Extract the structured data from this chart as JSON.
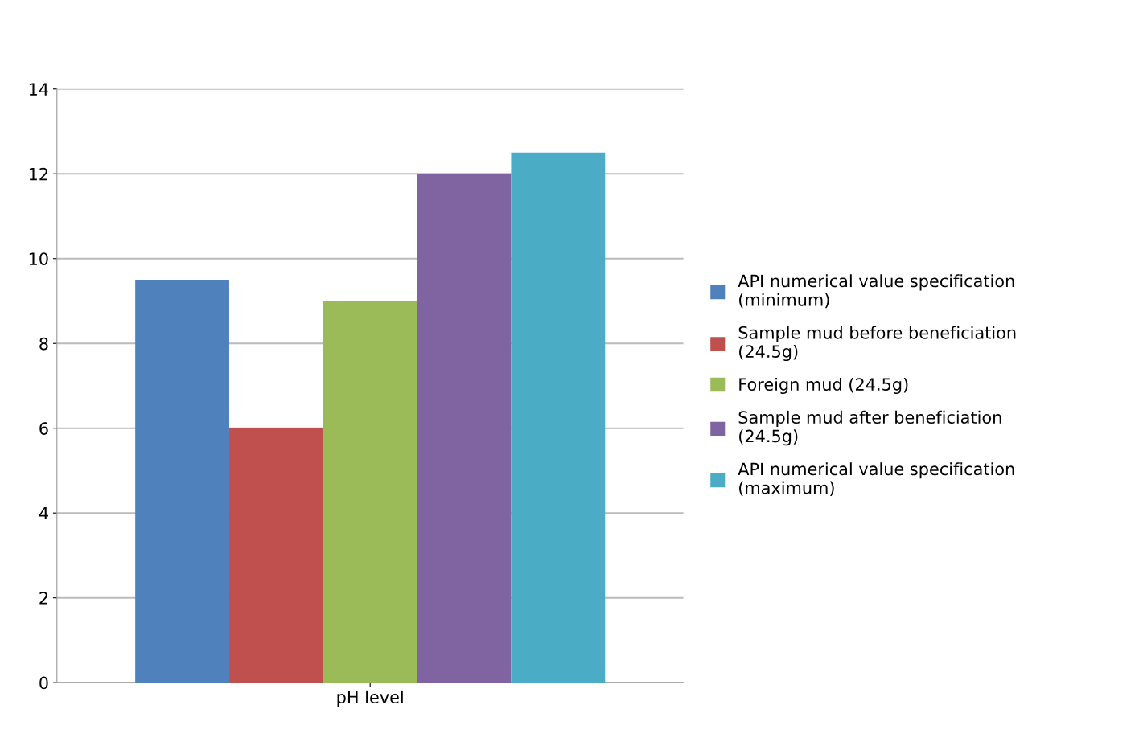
{
  "chart_data": {
    "type": "bar",
    "categories": [
      "pH level"
    ],
    "series": [
      {
        "name": "API numerical value specification (minimum)",
        "color": "#4f81bd",
        "values": [
          9.5
        ]
      },
      {
        "name": "Sample mud before beneficiation (24.5g)",
        "color": "#c0504d",
        "values": [
          6.0
        ]
      },
      {
        "name": "Foreign mud (24.5g)",
        "color": "#9bbb59",
        "values": [
          9.0
        ]
      },
      {
        "name": "Sample mud after beneficiation (24.5g)",
        "color": "#8064a2",
        "values": [
          12.0
        ]
      },
      {
        "name": "API numerical value specification (maximum)",
        "color": "#4bacc6",
        "values": [
          12.5
        ]
      }
    ],
    "ylim": [
      0,
      14
    ],
    "yticks": [
      0,
      2,
      4,
      6,
      8,
      10,
      12,
      14
    ],
    "grid": "y",
    "legend": "right"
  }
}
